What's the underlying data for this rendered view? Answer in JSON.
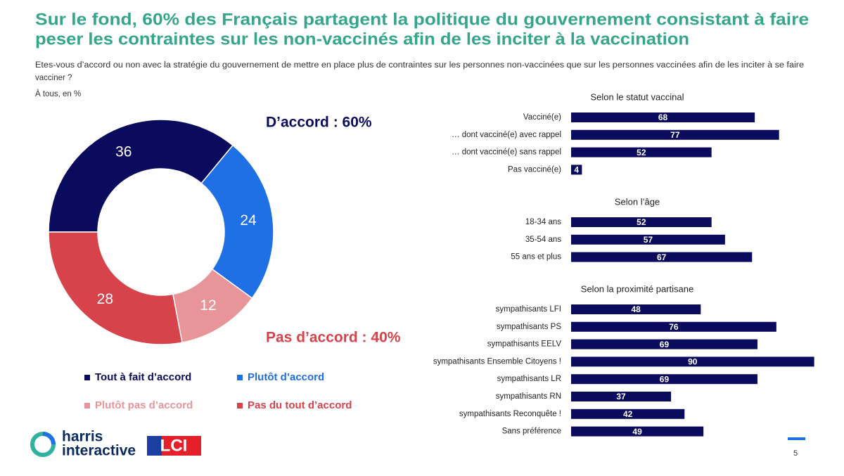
{
  "title": [
    "Sur le fond, 60% des Français partagent la politique du gouvernement consistant à faire",
    "peser les contraintes sur les non-vaccinés afin de les inciter à la vaccination"
  ],
  "question": [
    "Etes-vous d’accord ou non avec la stratégie du gouvernement de mettre en place plus de contraintes sur les personnes non-vaccinées que sur les personnes vaccinées afin de les inciter à se faire",
    "vacciner ?"
  ],
  "base": "À tous, en %",
  "logos": {
    "harris": [
      "harris",
      "interactive"
    ],
    "lci": "LCI"
  },
  "page_number": 5,
  "chart_data": [
    {
      "type": "donut",
      "categories": [
        "Tout à fait d’accord",
        "Plutôt d’accord",
        "Plutôt pas d’accord",
        "Pas du tout d’accord"
      ],
      "values": [
        36,
        24,
        12,
        28
      ],
      "colors": [
        "#0b0b5e",
        "#1f6fe5",
        "#e8959a",
        "#d6434b"
      ],
      "annotations": [
        {
          "text": "D’accord : 60%",
          "color": "#0b0b5e"
        },
        {
          "text": "Pas d’accord : 40%",
          "color": "#d6434b"
        }
      ]
    },
    {
      "type": "bar",
      "title": "Selon le statut vaccinal",
      "color": "#0b0b5e",
      "categories": [
        "Vacciné(e)",
        "… dont vacciné(e) avec rappel",
        "… dont vacciné(e) sans rappel",
        "Pas vacciné(e)"
      ],
      "values": [
        68,
        77,
        52,
        4
      ]
    },
    {
      "type": "bar",
      "title": "Selon l’âge",
      "color": "#0b0b5e",
      "categories": [
        "18-34 ans",
        "35-54 ans",
        "55 ans et plus"
      ],
      "values": [
        52,
        57,
        67
      ]
    },
    {
      "type": "bar",
      "title": "Selon la proximité partisane",
      "color": "#0b0b5e",
      "categories": [
        "sympathisants LFI",
        "sympathisants PS",
        "sympathisants EELV",
        "sympathisants Ensemble Citoyens !",
        "sympathisants LR",
        "sympathisants RN",
        "sympathisants Reconquête !",
        "Sans préférence"
      ],
      "values": [
        48,
        76,
        69,
        90,
        69,
        37,
        42,
        49
      ]
    }
  ]
}
